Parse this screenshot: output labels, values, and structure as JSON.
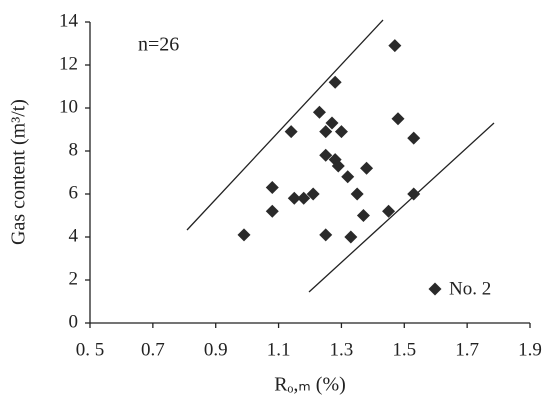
{
  "chart_data": {
    "type": "scatter",
    "annotation": "n=26",
    "x_label": "Rₒ,ₘ (%)",
    "y_label": "Gas content (m³/t)",
    "xlim": [
      0.5,
      1.9
    ],
    "xticks": [
      {
        "value": 0.5,
        "label": "0. 5"
      },
      0.7,
      0.9,
      1.1,
      1.3,
      1.5,
      1.7,
      1.9
    ],
    "ylim": [
      0,
      14
    ],
    "yticks": [
      0,
      2,
      4,
      6,
      8,
      10,
      12,
      14
    ],
    "legend": "bottom-right",
    "series": [
      {
        "name": "No. 2",
        "color": "#2a2a2a",
        "x": [
          0.99,
          1.08,
          1.08,
          1.15,
          1.18,
          1.21,
          1.14,
          1.23,
          1.25,
          1.25,
          1.25,
          1.27,
          1.28,
          1.29,
          1.3,
          1.28,
          1.32,
          1.33,
          1.35,
          1.37,
          1.38,
          1.45,
          1.47,
          1.48,
          1.53,
          1.53
        ],
        "values": [
          4.1,
          6.3,
          5.2,
          5.8,
          5.8,
          6.0,
          8.9,
          9.8,
          8.9,
          7.8,
          4.1,
          9.3,
          7.6,
          7.3,
          8.9,
          11.2,
          6.8,
          4.0,
          6.0,
          5.0,
          7.2,
          5.2,
          12.9,
          9.5,
          8.6,
          6.0
        ]
      }
    ]
  }
}
